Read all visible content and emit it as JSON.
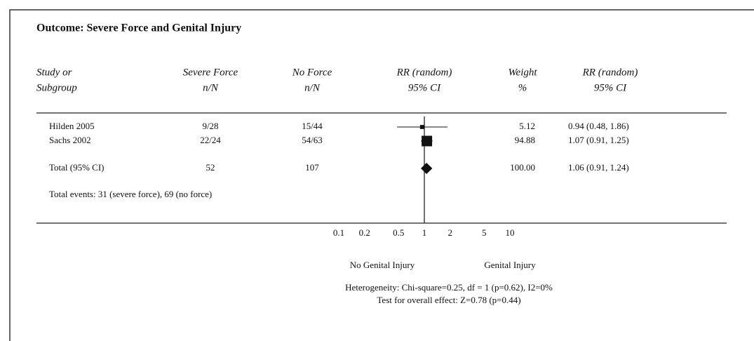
{
  "chart_data": {
    "type": "forest",
    "title": "Outcome: Severe Force and Genital Injury",
    "headers": {
      "study": [
        "Study or",
        "Subgroup"
      ],
      "severe": [
        "Severe Force",
        "n/N"
      ],
      "none": [
        "No Force",
        "n/N"
      ],
      "rr": [
        "RR (random)",
        "95% CI"
      ],
      "weight": [
        "Weight",
        "%"
      ],
      "rrci": [
        "RR (random)",
        "95% CI"
      ]
    },
    "studies": [
      {
        "name": "Hilden 2005",
        "severe": "9/28",
        "none": "15/44",
        "weight": 5.12,
        "rr": 0.94,
        "ci": [
          0.48,
          1.86
        ],
        "rr_label": "0.94 (0.48, 1.86)"
      },
      {
        "name": "Sachs 2002",
        "severe": "22/24",
        "none": "54/63",
        "weight": 94.88,
        "rr": 1.07,
        "ci": [
          0.91,
          1.25
        ],
        "rr_label": "1.07  (0.91, 1.25)"
      }
    ],
    "total": {
      "name": "Total (95% CI)",
      "severe": "52",
      "none": "107",
      "weight_label": "100.00",
      "rr": 1.06,
      "ci": [
        0.91,
        1.24
      ],
      "rr_label": "1.06 (0.91, 1.24)"
    },
    "total_events": "Total events: 31 (severe force), 69 (no force)",
    "xlim": [
      0.1,
      10
    ],
    "xticks": [
      0.1,
      0.2,
      0.5,
      1,
      2,
      5,
      10
    ],
    "log_x": true,
    "favours_left": "No Genital Injury",
    "favours_right": "Genital Injury",
    "heterogeneity": "Heterogeneity: Chi-square=0.25, df = 1 (p=0.62), I2=0%",
    "overall_effect": "Test for overall effect: Z=0.78 (p=0.44)"
  }
}
